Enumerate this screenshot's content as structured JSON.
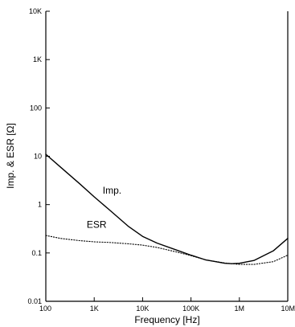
{
  "chart_data": {
    "type": "line",
    "title": "",
    "xlabel": "Frequency  [Hz]",
    "ylabel": "Imp. & ESR  [Ω]",
    "x_scale": "log",
    "y_scale": "log",
    "xlim": [
      100,
      10000000
    ],
    "ylim": [
      0.01,
      10000
    ],
    "grid": false,
    "x_ticks": [
      {
        "value": 100,
        "label": "100"
      },
      {
        "value": 1000,
        "label": "1K"
      },
      {
        "value": 10000,
        "label": "10K"
      },
      {
        "value": 100000,
        "label": "100K"
      },
      {
        "value": 1000000,
        "label": "1M"
      },
      {
        "value": 10000000,
        "label": "10M"
      }
    ],
    "y_ticks": [
      {
        "value": 0.01,
        "label": "0.01"
      },
      {
        "value": 0.1,
        "label": "0.1"
      },
      {
        "value": 1,
        "label": "1"
      },
      {
        "value": 10,
        "label": "10"
      },
      {
        "value": 100,
        "label": "100"
      },
      {
        "value": 1000,
        "label": "1K"
      },
      {
        "value": 10000,
        "label": "10K"
      }
    ],
    "series": [
      {
        "name": "Imp.",
        "style": "solid",
        "label_at": [
          1500,
          1.7
        ],
        "x": [
          100,
          200,
          500,
          1000,
          2000,
          5000,
          10000,
          20000,
          50000,
          100000,
          200000,
          500000,
          700000,
          1000000,
          2000000,
          5000000,
          10000000
        ],
        "y": [
          11,
          6,
          2.7,
          1.45,
          0.8,
          0.36,
          0.22,
          0.16,
          0.115,
          0.09,
          0.072,
          0.061,
          0.06,
          0.061,
          0.07,
          0.11,
          0.2
        ]
      },
      {
        "name": "ESR",
        "style": "dotted",
        "label_at": [
          700,
          0.33
        ],
        "x": [
          100,
          200,
          500,
          1000,
          2000,
          5000,
          10000,
          20000,
          50000,
          100000,
          200000,
          500000,
          1000000,
          2000000,
          5000000,
          10000000
        ],
        "y": [
          0.23,
          0.2,
          0.18,
          0.17,
          0.165,
          0.155,
          0.145,
          0.13,
          0.105,
          0.088,
          0.072,
          0.062,
          0.058,
          0.058,
          0.066,
          0.09
        ]
      }
    ]
  }
}
